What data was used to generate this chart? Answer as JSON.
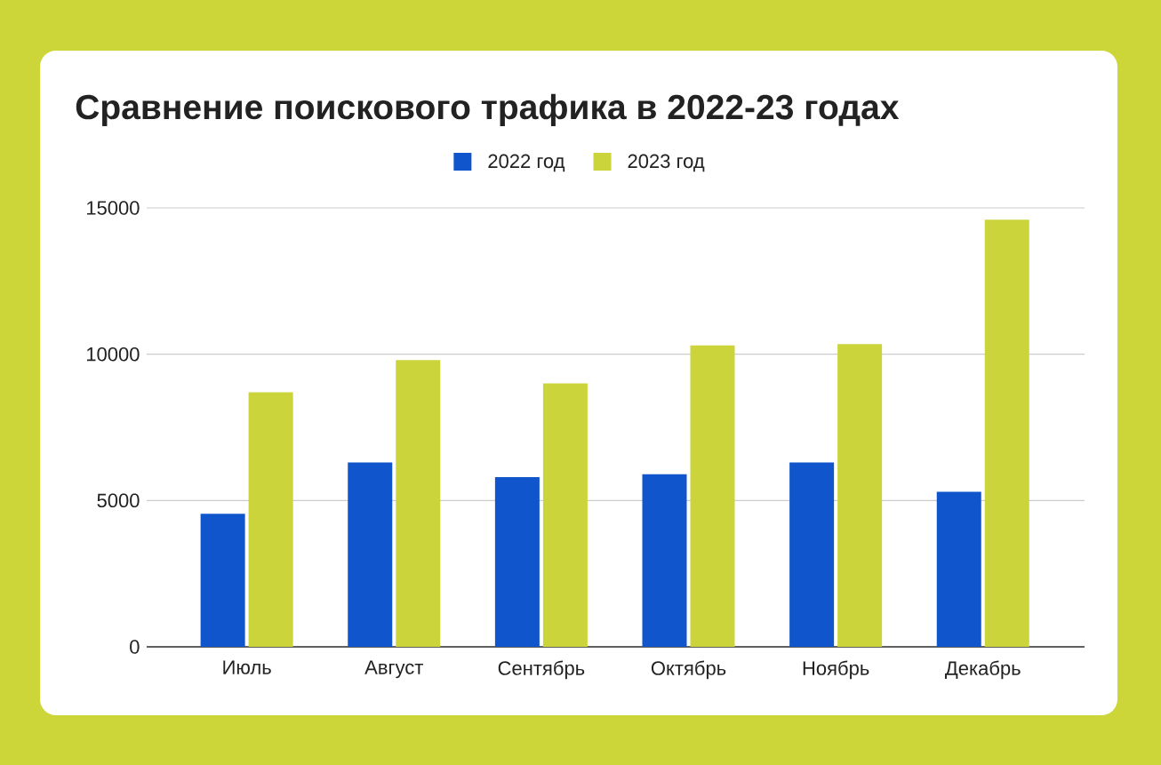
{
  "chart_data": {
    "type": "bar",
    "title": "Сравнение поискового трафика в 2022-23 годах",
    "categories": [
      "Июль",
      "Август",
      "Сентябрь",
      "Октябрь",
      "Ноябрь",
      "Декабрь"
    ],
    "series": [
      {
        "name": "2022 год",
        "color": "#1155cc",
        "values": [
          4550,
          6300,
          5800,
          5900,
          6300,
          5300
        ]
      },
      {
        "name": "2023 год",
        "color": "#cbd53b",
        "values": [
          8700,
          9800,
          9000,
          10300,
          10350,
          14600
        ]
      }
    ],
    "ylim": [
      0,
      15000
    ],
    "yticks": [
      0,
      5000,
      10000,
      15000
    ],
    "grid": "y",
    "legend": "top"
  }
}
